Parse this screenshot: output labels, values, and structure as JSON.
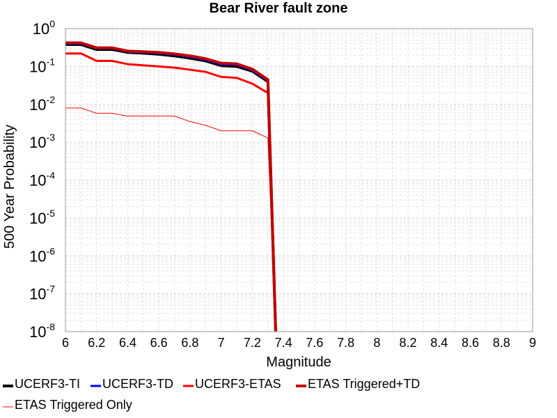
{
  "chart_data": {
    "type": "line",
    "title": "Bear River fault zone",
    "xlabel": "Magnitude",
    "ylabel": "500 Year Probability",
    "xlim": [
      6,
      9
    ],
    "ylim": [
      1e-08,
      1
    ],
    "y_scale": "log",
    "grid": true,
    "legend_position": "bottom",
    "x_ticks": [
      "6",
      "6.2",
      "6.4",
      "6.6",
      "6.8",
      "7",
      "7.2",
      "7.4",
      "7.6",
      "7.8",
      "8",
      "8.2",
      "8.4",
      "8.6",
      "8.8",
      "9"
    ],
    "y_ticks": [
      {
        "base": "10",
        "exp": "0"
      },
      {
        "base": "10",
        "exp": "-1"
      },
      {
        "base": "10",
        "exp": "-2"
      },
      {
        "base": "10",
        "exp": "-3"
      },
      {
        "base": "10",
        "exp": "-4"
      },
      {
        "base": "10",
        "exp": "-5"
      },
      {
        "base": "10",
        "exp": "-6"
      },
      {
        "base": "10",
        "exp": "-7"
      },
      {
        "base": "10",
        "exp": "-8"
      }
    ],
    "x": [
      6.0,
      6.1,
      6.2,
      6.3,
      6.4,
      6.5,
      6.6,
      6.7,
      6.8,
      6.9,
      7.0,
      7.1,
      7.2,
      7.3,
      7.35
    ],
    "series": [
      {
        "name": "UCERF3-TI",
        "color": "#000000",
        "width": 4,
        "values": [
          0.38,
          0.38,
          0.28,
          0.28,
          0.235,
          0.225,
          0.21,
          0.19,
          0.165,
          0.14,
          0.105,
          0.1,
          0.075,
          0.04,
          1e-08
        ]
      },
      {
        "name": "UCERF3-TD",
        "color": "#0000ff",
        "width": 3,
        "values": [
          0.4,
          0.4,
          0.3,
          0.3,
          0.245,
          0.235,
          0.225,
          0.205,
          0.18,
          0.15,
          0.115,
          0.11,
          0.08,
          0.042,
          1e-08
        ]
      },
      {
        "name": "UCERF3-ETAS",
        "color": "#ff0000",
        "width": 3,
        "values": [
          0.22,
          0.22,
          0.14,
          0.14,
          0.115,
          0.107,
          0.1,
          0.093,
          0.082,
          0.072,
          0.053,
          0.05,
          0.035,
          0.02,
          1e-08
        ]
      },
      {
        "name": "ETAS Triggered+TD",
        "color": "#c00000",
        "width": 4,
        "values": [
          0.42,
          0.42,
          0.31,
          0.31,
          0.255,
          0.245,
          0.235,
          0.215,
          0.19,
          0.16,
          0.122,
          0.117,
          0.085,
          0.045,
          1e-08
        ]
      },
      {
        "name": "ETAS Triggered Only",
        "color": "#ff0000",
        "width": 1,
        "values": [
          0.008,
          0.008,
          0.0058,
          0.0058,
          0.0049,
          0.0049,
          0.0049,
          0.0049,
          0.0035,
          0.0028,
          0.002,
          0.002,
          0.002,
          0.0013,
          1e-08
        ]
      }
    ]
  }
}
